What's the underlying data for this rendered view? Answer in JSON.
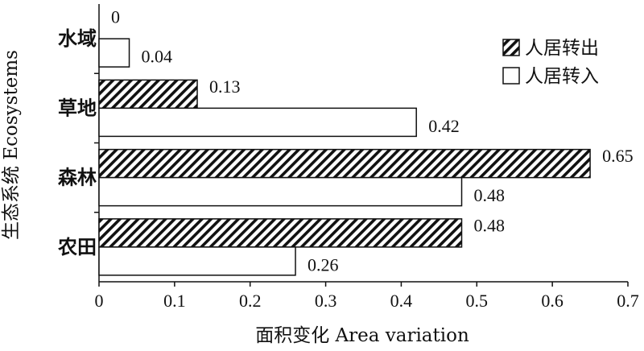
{
  "chart_data": {
    "type": "bar",
    "orientation": "horizontal",
    "categories": [
      "水域",
      "草地",
      "森林",
      "农田"
    ],
    "series": [
      {
        "name": "人居转出",
        "values": [
          0,
          0.13,
          0.65,
          0.48
        ],
        "value_labels": [
          "0",
          "0.13",
          "0.65",
          "0.48"
        ],
        "pattern": "diagonal-hatch"
      },
      {
        "name": "人居转入",
        "values": [
          0.04,
          0.42,
          0.48,
          0.26
        ],
        "value_labels": [
          "0.04",
          "0.42",
          "0.48",
          "0.26"
        ],
        "pattern": "none"
      }
    ],
    "xlabel": "面积变化 Area variation",
    "ylabel": "生态系统 Ecosystems",
    "xlim": [
      0,
      0.7
    ],
    "xticks": [
      "0",
      "0.1",
      "0.2",
      "0.3",
      "0.4",
      "0.5",
      "0.6",
      "0.7"
    ],
    "grid": false,
    "legend_position": "top-right",
    "colors": {
      "stroke": "#111111",
      "fill": "#ffffff"
    }
  }
}
